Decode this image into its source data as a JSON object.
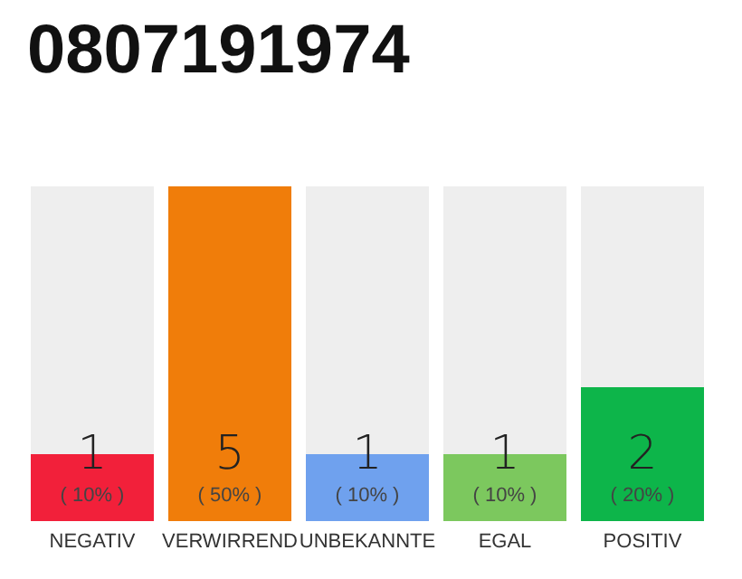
{
  "chart_data": {
    "type": "bar",
    "title": "0807191974",
    "categories": [
      "NEGATIV",
      "VERWIRREND",
      "UNBEKANNTE",
      "EGAL",
      "POSITIV"
    ],
    "values": [
      1,
      5,
      1,
      1,
      2
    ],
    "colors": [
      "#f2203a",
      "#f07d0a",
      "#6fa1ee",
      "#7cc85e",
      "#0db54a"
    ],
    "value_labels": [
      "1\n( 10% )",
      "5\n( 50% )",
      "1\n( 10% )",
      "1\n( 10% )",
      "2\n( 20% )"
    ],
    "grid": false
  }
}
